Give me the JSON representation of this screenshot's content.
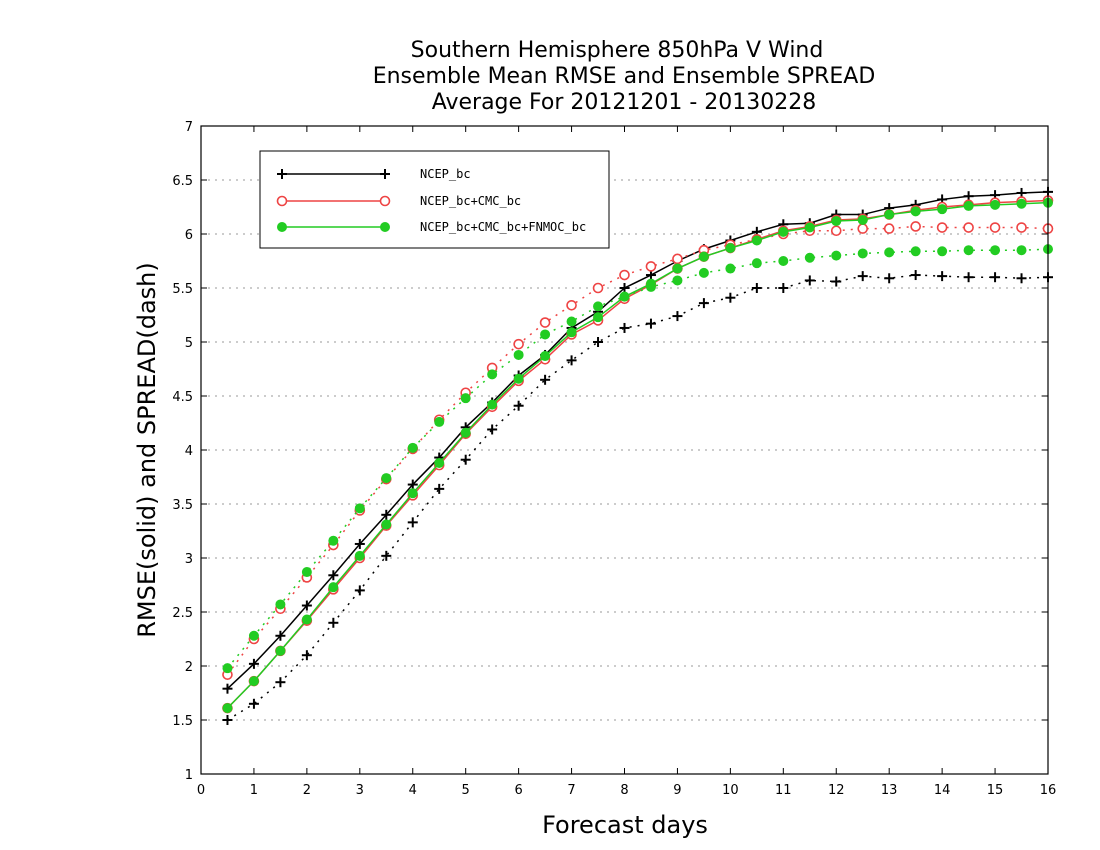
{
  "chart_data": {
    "type": "line",
    "title_lines": [
      "Southern Hemisphere 850hPa V Wind",
      "Ensemble Mean RMSE and Ensemble SPREAD",
      "Average For 20121201 - 20130228"
    ],
    "xlabel": "Forecast days",
    "ylabel": "RMSE(solid) and SPREAD(dash)",
    "xlim": [
      0,
      16
    ],
    "ylim": [
      1,
      7
    ],
    "xticks": [
      "0",
      "1",
      "2",
      "3",
      "4",
      "5",
      "6",
      "7",
      "8",
      "9",
      "10",
      "11",
      "12",
      "13",
      "14",
      "15",
      "16"
    ],
    "yticks": [
      "1",
      "1.5",
      "2",
      "2.5",
      "3",
      "3.5",
      "4",
      "4.5",
      "5",
      "5.5",
      "6",
      "6.5",
      "7"
    ],
    "grid": "horizontal dotted",
    "legend_position": "top-left",
    "x": [
      0.5,
      1,
      1.5,
      2,
      2.5,
      3,
      3.5,
      4,
      4.5,
      5,
      5.5,
      6,
      6.5,
      7,
      7.5,
      8,
      8.5,
      9,
      9.5,
      10,
      10.5,
      11,
      11.5,
      12,
      12.5,
      13,
      13.5,
      14,
      14.5,
      15,
      15.5,
      16
    ],
    "series": [
      {
        "name": "NCEP_bc",
        "color": "#000000",
        "marker": "plus",
        "rmse": [
          1.79,
          2.02,
          2.28,
          2.56,
          2.84,
          3.13,
          3.4,
          3.68,
          3.93,
          4.21,
          4.44,
          4.69,
          4.88,
          5.13,
          5.28,
          5.5,
          5.62,
          5.75,
          5.86,
          5.94,
          6.02,
          6.09,
          6.1,
          6.18,
          6.18,
          6.24,
          6.27,
          6.32,
          6.35,
          6.36,
          6.38,
          6.39
        ],
        "spread": [
          1.5,
          1.65,
          1.85,
          2.1,
          2.4,
          2.7,
          3.02,
          3.33,
          3.64,
          3.91,
          4.19,
          4.41,
          4.65,
          4.83,
          5.0,
          5.13,
          5.17,
          5.24,
          5.36,
          5.41,
          5.5,
          5.5,
          5.57,
          5.56,
          5.61,
          5.59,
          5.62,
          5.61,
          5.6,
          5.6,
          5.59,
          5.6
        ]
      },
      {
        "name": "NCEP_bc+CMC_bc",
        "color": "#ee4444",
        "marker": "open-circle",
        "rmse": [
          1.61,
          1.86,
          2.14,
          2.42,
          2.71,
          3.0,
          3.3,
          3.58,
          3.86,
          4.15,
          4.4,
          4.64,
          4.84,
          5.07,
          5.2,
          5.4,
          5.53,
          5.68,
          5.79,
          5.87,
          5.95,
          6.03,
          6.07,
          6.13,
          6.14,
          6.18,
          6.22,
          6.25,
          6.27,
          6.29,
          6.3,
          6.31
        ],
        "spread": [
          1.92,
          2.25,
          2.53,
          2.82,
          3.12,
          3.44,
          3.73,
          4.01,
          4.28,
          4.53,
          4.76,
          4.98,
          5.18,
          5.34,
          5.5,
          5.62,
          5.7,
          5.77,
          5.85,
          5.9,
          5.95,
          6.0,
          6.03,
          6.03,
          6.05,
          6.05,
          6.07,
          6.06,
          6.06,
          6.06,
          6.06,
          6.05
        ]
      },
      {
        "name": "NCEP_bc+CMC_bc+FNMOC_bc",
        "color": "#22cc22",
        "marker": "filled-circle",
        "rmse": [
          1.61,
          1.86,
          2.14,
          2.43,
          2.73,
          3.02,
          3.31,
          3.6,
          3.88,
          4.16,
          4.42,
          4.66,
          4.87,
          5.09,
          5.23,
          5.42,
          5.54,
          5.68,
          5.79,
          5.87,
          5.94,
          6.02,
          6.06,
          6.12,
          6.13,
          6.18,
          6.21,
          6.23,
          6.26,
          6.27,
          6.28,
          6.29
        ],
        "spread": [
          1.98,
          2.28,
          2.57,
          2.87,
          3.16,
          3.46,
          3.74,
          4.02,
          4.26,
          4.48,
          4.7,
          4.88,
          5.07,
          5.19,
          5.33,
          5.42,
          5.51,
          5.57,
          5.64,
          5.68,
          5.73,
          5.75,
          5.78,
          5.8,
          5.82,
          5.83,
          5.84,
          5.84,
          5.85,
          5.85,
          5.85,
          5.86
        ]
      }
    ]
  }
}
